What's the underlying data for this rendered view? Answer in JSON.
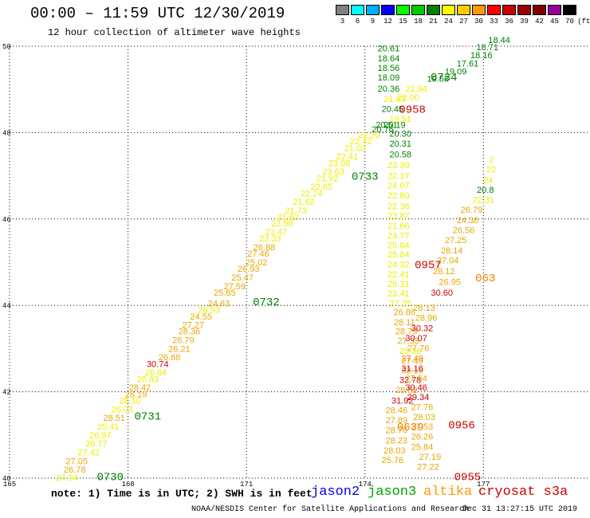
{
  "title": "00:00 – 11:59 UTC 12/30/2019",
  "subtitle": "12 hour collection of altimeter wave heights",
  "legend": {
    "unit": "(ft)",
    "items": [
      {
        "label": "3",
        "color": "#808080"
      },
      {
        "label": "6",
        "color": "#00ffff"
      },
      {
        "label": "9",
        "color": "#00b0ff"
      },
      {
        "label": "12",
        "color": "#0000ff"
      },
      {
        "label": "15",
        "color": "#00ff00"
      },
      {
        "label": "18",
        "color": "#00cc00"
      },
      {
        "label": "21",
        "color": "#008000"
      },
      {
        "label": "24",
        "color": "#ffff00"
      },
      {
        "label": "27",
        "color": "#ffcc00"
      },
      {
        "label": "30",
        "color": "#ff9900"
      },
      {
        "label": "33",
        "color": "#ff0000"
      },
      {
        "label": "36",
        "color": "#cc0000"
      },
      {
        "label": "39",
        "color": "#990000"
      },
      {
        "label": "42",
        "color": "#800000"
      },
      {
        "label": "45",
        "color": "#990099"
      },
      {
        "label": "70",
        "color": "#000000"
      }
    ]
  },
  "axes": {
    "lon_labels": [
      "165",
      "168",
      "171",
      "174",
      "177"
    ],
    "lat_labels": [
      "50",
      "48",
      "46",
      "44",
      "42",
      "40"
    ]
  },
  "swh_colors": {
    "yellow": "#eeee00",
    "amber": "#e6a800",
    "orange": "#f08000",
    "green": "#008000",
    "red": "#cc0000"
  },
  "observations": [
    {
      "lon": 166.45,
      "lat": 40.02,
      "v": "27.94",
      "c": "yellow"
    },
    {
      "lon": 166.65,
      "lat": 40.2,
      "v": "26.78",
      "c": "amber"
    },
    {
      "lon": 166.7,
      "lat": 40.4,
      "v": "27.05",
      "c": "amber"
    },
    {
      "lon": 167.0,
      "lat": 40.6,
      "v": "27.42",
      "c": "yellow"
    },
    {
      "lon": 167.2,
      "lat": 40.8,
      "v": "26.77",
      "c": "yellow"
    },
    {
      "lon": 167.3,
      "lat": 41.0,
      "v": "26.97",
      "c": "yellow"
    },
    {
      "lon": 167.5,
      "lat": 41.2,
      "v": "25.41",
      "c": "yellow"
    },
    {
      "lon": 167.65,
      "lat": 41.4,
      "v": "28.51",
      "c": "amber"
    },
    {
      "lon": 167.85,
      "lat": 41.6,
      "v": "26.03",
      "c": "yellow"
    },
    {
      "lon": 168.05,
      "lat": 41.8,
      "v": "28.10",
      "c": "yellow"
    },
    {
      "lon": 168.2,
      "lat": 41.95,
      "v": "28.19",
      "c": "amber"
    },
    {
      "lon": 168.3,
      "lat": 42.1,
      "v": "28.42",
      "c": "amber"
    },
    {
      "lon": 168.5,
      "lat": 42.3,
      "v": "26.83",
      "c": "yellow"
    },
    {
      "lon": 168.7,
      "lat": 42.45,
      "v": "26.84",
      "c": "yellow"
    },
    {
      "lon": 168.75,
      "lat": 42.65,
      "v": "30.74",
      "c": "red"
    },
    {
      "lon": 169.05,
      "lat": 42.8,
      "v": "26.68",
      "c": "amber"
    },
    {
      "lon": 169.3,
      "lat": 43.0,
      "v": "26.21",
      "c": "amber"
    },
    {
      "lon": 169.4,
      "lat": 43.2,
      "v": "26.79",
      "c": "amber"
    },
    {
      "lon": 169.55,
      "lat": 43.4,
      "v": "28.36",
      "c": "amber"
    },
    {
      "lon": 169.65,
      "lat": 43.55,
      "v": "27.27",
      "c": "amber"
    },
    {
      "lon": 169.85,
      "lat": 43.75,
      "v": "24.55",
      "c": "amber"
    },
    {
      "lon": 170.05,
      "lat": 43.9,
      "v": "26.93",
      "c": "yellow"
    },
    {
      "lon": 170.3,
      "lat": 44.05,
      "v": "24.63",
      "c": "amber"
    },
    {
      "lon": 170.45,
      "lat": 44.3,
      "v": "25.85",
      "c": "amber"
    },
    {
      "lon": 170.7,
      "lat": 44.45,
      "v": "27.59",
      "c": "amber"
    },
    {
      "lon": 170.9,
      "lat": 44.65,
      "v": "25.47",
      "c": "amber"
    },
    {
      "lon": 171.05,
      "lat": 44.85,
      "v": "26.93",
      "c": "amber"
    },
    {
      "lon": 171.25,
      "lat": 45.0,
      "v": "25.02",
      "c": "amber"
    },
    {
      "lon": 171.3,
      "lat": 45.2,
      "v": "27.46",
      "c": "amber"
    },
    {
      "lon": 171.45,
      "lat": 45.35,
      "v": "26.88",
      "c": "amber"
    },
    {
      "lon": 171.6,
      "lat": 45.55,
      "v": "23.33",
      "c": "yellow"
    },
    {
      "lon": 171.75,
      "lat": 45.7,
      "v": "23.47",
      "c": "yellow"
    },
    {
      "lon": 171.9,
      "lat": 45.9,
      "v": "22.98",
      "c": "yellow"
    },
    {
      "lon": 172.05,
      "lat": 46.05,
      "v": "21.82",
      "c": "yellow"
    },
    {
      "lon": 172.25,
      "lat": 46.2,
      "v": "21.73",
      "c": "yellow"
    },
    {
      "lon": 172.45,
      "lat": 46.4,
      "v": "21.62",
      "c": "yellow"
    },
    {
      "lon": 172.65,
      "lat": 46.6,
      "v": "22.24",
      "c": "yellow"
    },
    {
      "lon": 172.9,
      "lat": 46.75,
      "v": "22.65",
      "c": "yellow"
    },
    {
      "lon": 173.05,
      "lat": 46.95,
      "v": "21.92",
      "c": "yellow"
    },
    {
      "lon": 173.2,
      "lat": 47.1,
      "v": "23.63",
      "c": "yellow"
    },
    {
      "lon": 173.35,
      "lat": 47.3,
      "v": "23.08",
      "c": "yellow"
    },
    {
      "lon": 173.55,
      "lat": 47.45,
      "v": "22.41",
      "c": "yellow"
    },
    {
      "lon": 173.75,
      "lat": 47.65,
      "v": "21.03",
      "c": "yellow"
    },
    {
      "lon": 173.9,
      "lat": 47.8,
      "v": "22.42",
      "c": "yellow"
    },
    {
      "lon": 174.1,
      "lat": 47.95,
      "v": "22.20",
      "c": "yellow"
    },
    {
      "lon": 174.45,
      "lat": 48.08,
      "v": "20.76",
      "c": "green"
    },
    {
      "lon": 174.55,
      "lat": 48.18,
      "v": "20.51",
      "c": "green"
    },
    {
      "lon": 174.75,
      "lat": 48.18,
      "v": "20.19",
      "c": "green"
    },
    {
      "lon": 174.9,
      "lat": 48.32,
      "v": "19.51",
      "c": "yellow"
    },
    {
      "lon": 174.7,
      "lat": 48.55,
      "v": "20.45",
      "c": "green"
    },
    {
      "lon": 174.75,
      "lat": 48.78,
      "v": "21.63",
      "c": "yellow"
    },
    {
      "lon": 174.6,
      "lat": 49.02,
      "v": "20.36",
      "c": "green"
    },
    {
      "lon": 174.6,
      "lat": 49.28,
      "v": "18.09",
      "c": "green"
    },
    {
      "lon": 174.6,
      "lat": 49.5,
      "v": "18.56",
      "c": "green"
    },
    {
      "lon": 174.6,
      "lat": 49.72,
      "v": "18.64",
      "c": "green"
    },
    {
      "lon": 174.6,
      "lat": 49.95,
      "v": "20.61",
      "c": "green"
    },
    {
      "lon": 175.1,
      "lat": 48.82,
      "v": "22.00",
      "c": "yellow"
    },
    {
      "lon": 175.3,
      "lat": 49.02,
      "v": "21.94",
      "c": "yellow"
    },
    {
      "lon": 175.85,
      "lat": 49.25,
      "v": "19.58",
      "c": "green"
    },
    {
      "lon": 176.3,
      "lat": 49.42,
      "v": "19.09",
      "c": "green"
    },
    {
      "lon": 176.6,
      "lat": 49.6,
      "v": "17.61",
      "c": "green"
    },
    {
      "lon": 176.95,
      "lat": 49.8,
      "v": "18.16",
      "c": "green"
    },
    {
      "lon": 177.1,
      "lat": 49.98,
      "v": "18.71",
      "c": "green"
    },
    {
      "lon": 177.4,
      "lat": 50.15,
      "v": "18.44",
      "c": "green"
    },
    {
      "lon": 174.9,
      "lat": 47.98,
      "v": "20.30",
      "c": "green"
    },
    {
      "lon": 174.9,
      "lat": 47.75,
      "v": "20.31",
      "c": "green"
    },
    {
      "lon": 174.9,
      "lat": 47.5,
      "v": "20.58",
      "c": "green"
    },
    {
      "lon": 174.85,
      "lat": 47.25,
      "v": "23.39",
      "c": "yellow"
    },
    {
      "lon": 174.85,
      "lat": 47.0,
      "v": "22.17",
      "c": "yellow"
    },
    {
      "lon": 174.85,
      "lat": 46.78,
      "v": "24.07",
      "c": "yellow"
    },
    {
      "lon": 174.85,
      "lat": 46.55,
      "v": "22.80",
      "c": "yellow"
    },
    {
      "lon": 174.85,
      "lat": 46.3,
      "v": "22.36",
      "c": "yellow"
    },
    {
      "lon": 174.85,
      "lat": 46.08,
      "v": "23.87",
      "c": "yellow"
    },
    {
      "lon": 174.85,
      "lat": 45.85,
      "v": "21.66",
      "c": "yellow"
    },
    {
      "lon": 174.85,
      "lat": 45.62,
      "v": "24.77",
      "c": "yellow"
    },
    {
      "lon": 174.85,
      "lat": 45.4,
      "v": "25.84",
      "c": "yellow"
    },
    {
      "lon": 174.85,
      "lat": 45.18,
      "v": "25.84",
      "c": "yellow"
    },
    {
      "lon": 174.85,
      "lat": 44.95,
      "v": "24.32",
      "c": "yellow"
    },
    {
      "lon": 174.85,
      "lat": 44.72,
      "v": "22.41",
      "c": "yellow"
    },
    {
      "lon": 174.85,
      "lat": 44.5,
      "v": "25.31",
      "c": "yellow"
    },
    {
      "lon": 174.85,
      "lat": 44.28,
      "v": "23.41",
      "c": "yellow"
    },
    {
      "lon": 174.9,
      "lat": 44.05,
      "v": "27.25",
      "c": "yellow"
    },
    {
      "lon": 175.0,
      "lat": 43.85,
      "v": "26.86",
      "c": "amber"
    },
    {
      "lon": 175.0,
      "lat": 43.62,
      "v": "28.11",
      "c": "amber"
    },
    {
      "lon": 175.05,
      "lat": 43.4,
      "v": "28.79",
      "c": "amber"
    },
    {
      "lon": 175.1,
      "lat": 43.18,
      "v": "27.33",
      "c": "amber"
    },
    {
      "lon": 175.15,
      "lat": 42.95,
      "v": "25.30",
      "c": "yellow"
    },
    {
      "lon": 175.2,
      "lat": 42.72,
      "v": "27.49",
      "c": "amber"
    },
    {
      "lon": 175.2,
      "lat": 42.5,
      "v": "32.16",
      "c": "amber"
    },
    {
      "lon": 175.15,
      "lat": 42.28,
      "v": "32.78",
      "c": "red"
    },
    {
      "lon": 175.05,
      "lat": 42.05,
      "v": "28.52",
      "c": "amber"
    },
    {
      "lon": 174.95,
      "lat": 41.8,
      "v": "31.92",
      "c": "red"
    },
    {
      "lon": 174.8,
      "lat": 41.58,
      "v": "28.46",
      "c": "amber"
    },
    {
      "lon": 174.8,
      "lat": 41.35,
      "v": "27.89",
      "c": "amber"
    },
    {
      "lon": 174.8,
      "lat": 41.12,
      "v": "28.76",
      "c": "amber"
    },
    {
      "lon": 174.8,
      "lat": 40.88,
      "v": "28.23",
      "c": "amber"
    },
    {
      "lon": 174.75,
      "lat": 40.65,
      "v": "28.03",
      "c": "amber"
    },
    {
      "lon": 174.7,
      "lat": 40.42,
      "v": "25.76",
      "c": "amber"
    },
    {
      "lon": 175.5,
      "lat": 43.95,
      "v": "28.13",
      "c": "amber"
    },
    {
      "lon": 175.55,
      "lat": 43.72,
      "v": "28.96",
      "c": "amber"
    },
    {
      "lon": 175.45,
      "lat": 43.48,
      "v": "30.32",
      "c": "red"
    },
    {
      "lon": 175.3,
      "lat": 43.25,
      "v": "30.07",
      "c": "red"
    },
    {
      "lon": 175.35,
      "lat": 43.02,
      "v": "27.76",
      "c": "amber"
    },
    {
      "lon": 175.2,
      "lat": 42.78,
      "v": "27.49",
      "c": "orange"
    },
    {
      "lon": 175.2,
      "lat": 42.55,
      "v": "31.16",
      "c": "red"
    },
    {
      "lon": 175.3,
      "lat": 42.32,
      "v": "27.64",
      "c": "amber"
    },
    {
      "lon": 175.3,
      "lat": 42.1,
      "v": "30.46",
      "c": "red"
    },
    {
      "lon": 175.35,
      "lat": 41.88,
      "v": "29.34",
      "c": "red"
    },
    {
      "lon": 175.45,
      "lat": 41.65,
      "v": "27.76",
      "c": "amber"
    },
    {
      "lon": 175.5,
      "lat": 41.42,
      "v": "28.03",
      "c": "amber"
    },
    {
      "lon": 175.45,
      "lat": 41.2,
      "v": "27.53",
      "c": "amber"
    },
    {
      "lon": 175.45,
      "lat": 40.97,
      "v": "26.26",
      "c": "amber"
    },
    {
      "lon": 175.45,
      "lat": 40.73,
      "v": "25.84",
      "c": "amber"
    },
    {
      "lon": 175.65,
      "lat": 40.5,
      "v": "27.19",
      "c": "amber"
    },
    {
      "lon": 175.6,
      "lat": 40.27,
      "v": "27.22",
      "c": "amber"
    },
    {
      "lon": 175.95,
      "lat": 44.3,
      "v": "30.60",
      "c": "red"
    },
    {
      "lon": 176.15,
      "lat": 44.55,
      "v": "26.95",
      "c": "amber"
    },
    {
      "lon": 176.0,
      "lat": 44.8,
      "v": "28.12",
      "c": "amber"
    },
    {
      "lon": 176.1,
      "lat": 45.05,
      "v": "27.04",
      "c": "amber"
    },
    {
      "lon": 176.2,
      "lat": 45.28,
      "v": "28.14",
      "c": "amber"
    },
    {
      "lon": 176.3,
      "lat": 45.52,
      "v": "27.25",
      "c": "amber"
    },
    {
      "lon": 176.5,
      "lat": 45.75,
      "v": "26.56",
      "c": "amber"
    },
    {
      "lon": 176.6,
      "lat": 45.98,
      "v": "24.36",
      "c": "amber"
    },
    {
      "lon": 176.7,
      "lat": 46.22,
      "v": "26.79",
      "c": "amber"
    },
    {
      "lon": 177.0,
      "lat": 46.45,
      "v": "22.31",
      "c": "yellow"
    },
    {
      "lon": 177.05,
      "lat": 46.68,
      "v": "20.8",
      "c": "green"
    },
    {
      "lon": 177.15,
      "lat": 46.9,
      "v": "24.",
      "c": "yellow"
    },
    {
      "lon": 177.2,
      "lat": 47.15,
      "v": "22",
      "c": "yellow"
    },
    {
      "lon": 177.2,
      "lat": 47.38,
      "v": "2",
      "c": "yellow"
    }
  ],
  "passes": [
    {
      "lon": 167.55,
      "lat": 40.05,
      "t": "0730",
      "c": "green"
    },
    {
      "lon": 168.5,
      "lat": 41.45,
      "t": "0731",
      "c": "green"
    },
    {
      "lon": 171.5,
      "lat": 44.1,
      "t": "0732",
      "c": "green"
    },
    {
      "lon": 174.0,
      "lat": 47.0,
      "t": "0733",
      "c": "green"
    },
    {
      "lon": 176.0,
      "lat": 49.3,
      "t": "0734",
      "c": "green"
    },
    {
      "lon": 175.2,
      "lat": 48.55,
      "t": "0958",
      "c": "red"
    },
    {
      "lon": 175.6,
      "lat": 44.95,
      "t": "0957",
      "c": "red"
    },
    {
      "lon": 176.45,
      "lat": 41.25,
      "t": "0956",
      "c": "red"
    },
    {
      "lon": 176.6,
      "lat": 40.05,
      "t": "0955",
      "c": "red"
    },
    {
      "lon": 175.15,
      "lat": 41.2,
      "t": "0639",
      "c": "orange"
    },
    {
      "lon": 177.05,
      "lat": 44.65,
      "t": "063",
      "c": "orange"
    }
  ],
  "footer": {
    "note": "note: 1) Time is in UTC; 2) SWH is in feet",
    "satellites": [
      {
        "label": "jason2",
        "color": "#0000ee"
      },
      {
        "label": "jason3",
        "color": "#00a000"
      },
      {
        "label": "altika",
        "color": "#ff9900"
      },
      {
        "label": "cryosat s3a",
        "color": "#cc0000"
      }
    ],
    "credit": "NOAA/NESDIS Center for Satellite Applications and Research",
    "generated": "Dec 31 13:27:15 UTC 2019"
  }
}
